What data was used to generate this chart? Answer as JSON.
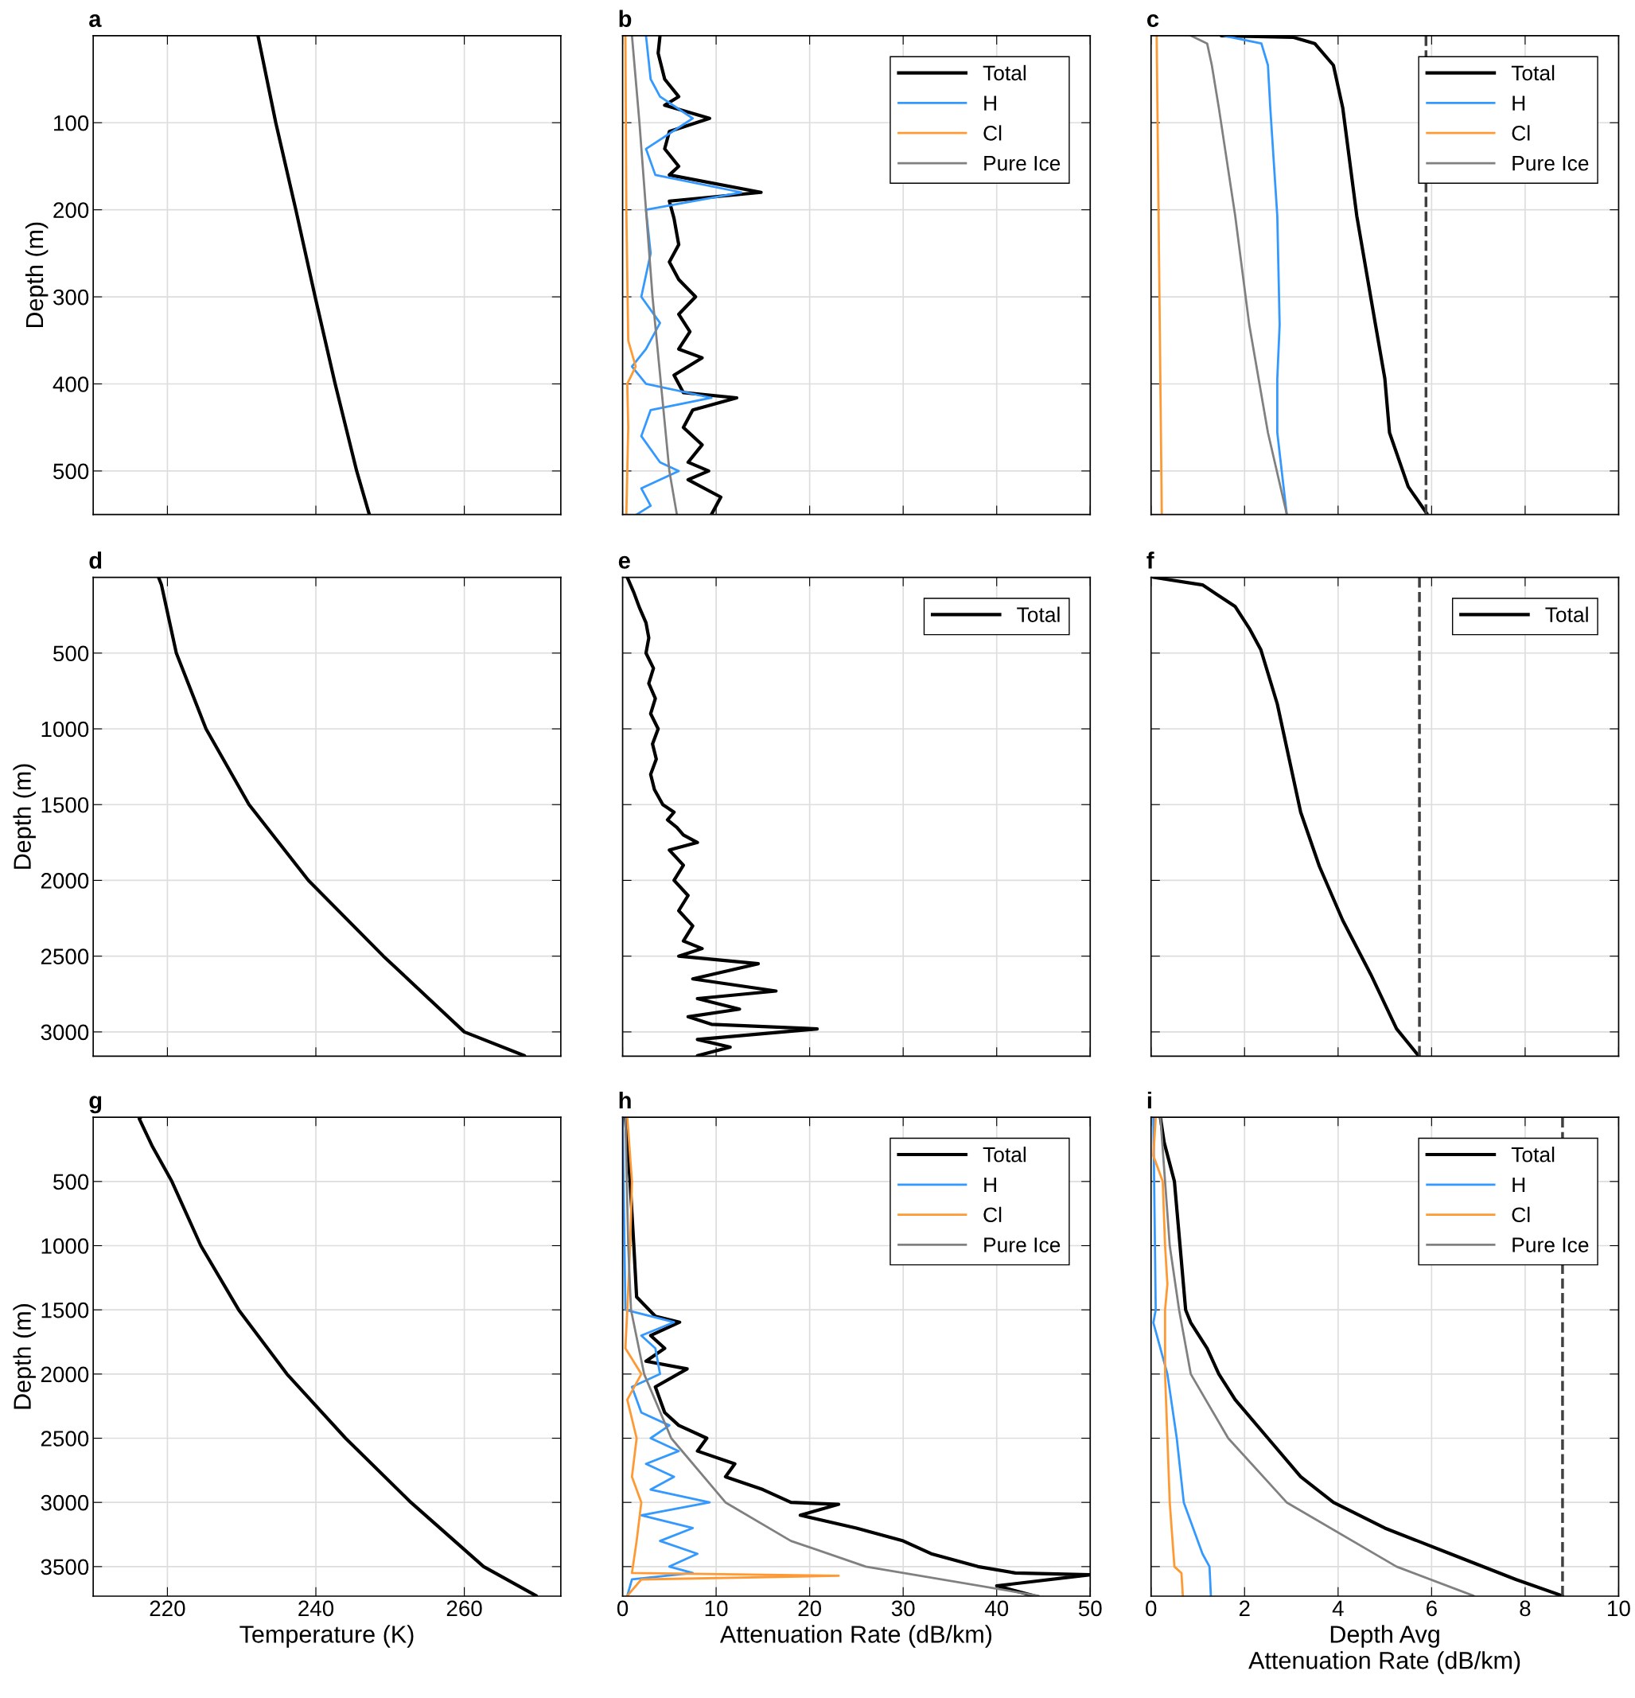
{
  "chart_data": [
    {
      "type": "line",
      "title": "a",
      "ylabel": "Depth (m)",
      "orientation": "horizontal",
      "xlim": [
        210,
        273
      ],
      "xticks": [
        220,
        240,
        260
      ],
      "ylim": [
        550,
        0
      ],
      "yticks": [
        100,
        200,
        300,
        400,
        500
      ],
      "grid": true,
      "tick_labels": "y",
      "series": [
        {
          "color": "#000000",
          "x": [
            0,
            100,
            200,
            300,
            400,
            500,
            550
          ],
          "values": [
            232.2,
            234.6,
            237.3,
            239.9,
            242.6,
            245.5,
            247.2
          ]
        }
      ]
    },
    {
      "type": "line",
      "title": "b",
      "orientation": "horizontal",
      "xlim": [
        0,
        50
      ],
      "xticks": [
        0,
        10,
        20,
        30,
        40,
        50
      ],
      "ylim": [
        550,
        0
      ],
      "yticks": [
        100,
        200,
        300,
        400,
        500
      ],
      "grid": true,
      "tick_labels": false,
      "legend": "top right",
      "series": [
        {
          "name": "Total",
          "color": "#000000",
          "x": [
            0,
            20,
            50,
            70,
            80,
            95,
            110,
            130,
            150,
            160,
            180,
            190,
            210,
            240,
            260,
            280,
            300,
            320,
            340,
            360,
            370,
            390,
            410,
            416,
            430,
            450,
            470,
            490,
            500,
            510,
            530,
            550
          ],
          "values": [
            4.0,
            3.8,
            4.5,
            6.0,
            4.5,
            9.3,
            5.0,
            4.5,
            6.0,
            5.0,
            14.8,
            5.0,
            5.5,
            6.0,
            5.0,
            6.0,
            7.8,
            6.0,
            7.2,
            6.0,
            8.5,
            5.5,
            6.5,
            12.2,
            7.5,
            6.5,
            8.5,
            7.0,
            9.2,
            7.0,
            10.5,
            9.5
          ]
        },
        {
          "name": "H",
          "color": "#3399ff",
          "x": [
            0,
            50,
            70,
            95,
            130,
            160,
            180,
            200,
            250,
            300,
            330,
            360,
            380,
            400,
            416,
            430,
            460,
            490,
            500,
            520,
            540,
            550
          ],
          "values": [
            2.5,
            3.0,
            4.0,
            7.5,
            2.5,
            3.5,
            12.7,
            2.5,
            3.0,
            2.0,
            4.0,
            2.5,
            1.0,
            2.5,
            9.5,
            3.0,
            2.0,
            4.0,
            6.0,
            2.0,
            3.0,
            1.5
          ]
        },
        {
          "name": "Cl",
          "color": "#ff9933",
          "x": [
            0,
            200,
            350,
            380,
            400,
            450,
            550
          ],
          "values": [
            0.3,
            0.4,
            0.6,
            1.4,
            0.5,
            0.6,
            0.4
          ]
        },
        {
          "name": "Pure Ice",
          "color": "#808080",
          "x": [
            0,
            100,
            200,
            300,
            400,
            500,
            550
          ],
          "values": [
            1.0,
            1.8,
            2.5,
            3.2,
            4.1,
            5.0,
            5.8
          ]
        }
      ]
    },
    {
      "type": "line",
      "title": "c",
      "orientation": "horizontal",
      "xlim": [
        0,
        10
      ],
      "xticks": [
        0,
        2,
        4,
        6,
        8,
        10
      ],
      "ylim": [
        550,
        0
      ],
      "yticks": [
        100,
        200,
        300,
        400,
        500
      ],
      "grid": true,
      "tick_labels": false,
      "legend": "top right",
      "ref_lines": [
        {
          "axis": "x",
          "value": 5.88,
          "color": "#404040",
          "line_style": "dashed"
        }
      ],
      "series": [
        {
          "name": "Total",
          "color": "#000000",
          "x": [
            0,
            2,
            9,
            34,
            83,
            207,
            332,
            394,
            456,
            518,
            549
          ],
          "values": [
            1.5,
            3.05,
            3.5,
            3.9,
            4.1,
            4.4,
            4.8,
            5.0,
            5.1,
            5.5,
            5.9
          ]
        },
        {
          "name": "H",
          "color": "#3399ff",
          "x": [
            0,
            9,
            34,
            83,
            207,
            332,
            394,
            456,
            549
          ],
          "values": [
            1.55,
            2.36,
            2.5,
            2.55,
            2.7,
            2.75,
            2.7,
            2.7,
            2.9
          ]
        },
        {
          "name": "Cl",
          "color": "#ff9933",
          "x": [
            0,
            549
          ],
          "values": [
            0.12,
            0.23
          ]
        },
        {
          "name": "Pure Ice",
          "color": "#808080",
          "x": [
            0,
            9,
            34,
            83,
            207,
            332,
            456,
            549
          ],
          "values": [
            0.85,
            1.2,
            1.3,
            1.45,
            1.8,
            2.1,
            2.5,
            2.9
          ]
        }
      ]
    },
    {
      "type": "line",
      "title": "d",
      "ylabel": "Depth (m)",
      "orientation": "horizontal",
      "xlim": [
        210,
        273
      ],
      "xticks": [
        220,
        240,
        260
      ],
      "ylim": [
        3160,
        0
      ],
      "yticks": [
        500,
        1000,
        1500,
        2000,
        2500,
        3000
      ],
      "grid": true,
      "tick_labels": "y",
      "series": [
        {
          "color": "#000000",
          "x": [
            0,
            50,
            500,
            1000,
            1500,
            2000,
            2500,
            3000,
            3157
          ],
          "values": [
            218.8,
            219.2,
            221.2,
            225.2,
            231.0,
            239.0,
            249.1,
            260.0,
            268.1
          ]
        }
      ]
    },
    {
      "type": "line",
      "title": "e",
      "orientation": "horizontal",
      "xlim": [
        0,
        50
      ],
      "xticks": [
        0,
        10,
        20,
        30,
        40,
        50
      ],
      "ylim": [
        3160,
        0
      ],
      "yticks": [
        500,
        1000,
        1500,
        2000,
        2500,
        3000
      ],
      "grid": true,
      "tick_labels": false,
      "legend": "top right",
      "series": [
        {
          "name": "Total",
          "color": "#000000",
          "x": [
            0,
            100,
            200,
            300,
            400,
            500,
            600,
            700,
            800,
            900,
            1000,
            1100,
            1200,
            1300,
            1400,
            1500,
            1550,
            1600,
            1650,
            1700,
            1750,
            1800,
            1900,
            2000,
            2100,
            2200,
            2300,
            2400,
            2450,
            2500,
            2550,
            2650,
            2730,
            2780,
            2850,
            2900,
            2950,
            2980,
            3050,
            3100,
            3157
          ],
          "values": [
            0.5,
            1.2,
            1.8,
            2.5,
            2.8,
            2.5,
            3.3,
            2.8,
            3.5,
            3.0,
            3.8,
            3.2,
            3.6,
            3.0,
            3.4,
            4.3,
            5.5,
            4.8,
            5.8,
            6.5,
            8.0,
            5.0,
            6.5,
            5.5,
            7.0,
            6.0,
            7.5,
            6.5,
            8.5,
            6.0,
            14.5,
            7.5,
            16.4,
            8.0,
            12.5,
            7.0,
            9.5,
            20.8,
            8.0,
            11.5,
            8.0
          ]
        }
      ]
    },
    {
      "type": "line",
      "title": "f",
      "orientation": "horizontal",
      "xlim": [
        0,
        10
      ],
      "xticks": [
        0,
        2,
        4,
        6,
        8,
        10
      ],
      "ylim": [
        3160,
        0
      ],
      "yticks": [
        500,
        1000,
        1500,
        2000,
        2500,
        3000
      ],
      "grid": true,
      "tick_labels": false,
      "legend": "top right",
      "ref_lines": [
        {
          "axis": "x",
          "value": 5.74,
          "color": "#404040",
          "line_style": "dashed"
        }
      ],
      "series": [
        {
          "name": "Total",
          "color": "#000000",
          "x": [
            0,
            50,
            193,
            336,
            479,
            836,
            1193,
            1550,
            1907,
            2264,
            2621,
            2979,
            3157
          ],
          "values": [
            0.05,
            1.1,
            1.8,
            2.1,
            2.35,
            2.7,
            2.95,
            3.2,
            3.6,
            4.1,
            4.7,
            5.25,
            5.72
          ]
        }
      ]
    },
    {
      "type": "line",
      "title": "g",
      "xlabel": "Temperature (K)",
      "ylabel": "Depth (m)",
      "orientation": "horizontal",
      "xlim": [
        210,
        273
      ],
      "xticks": [
        220,
        240,
        260
      ],
      "ylim": [
        3730,
        0
      ],
      "yticks": [
        500,
        1000,
        1500,
        2000,
        2500,
        3000,
        3500
      ],
      "grid": true,
      "series": [
        {
          "color": "#000000",
          "x": [
            0,
            10,
            230,
            500,
            1000,
            1500,
            2000,
            2500,
            3000,
            3500,
            3728
          ],
          "values": [
            216.4,
            216.2,
            218.0,
            220.6,
            224.5,
            229.6,
            236.1,
            244.0,
            252.8,
            262.6,
            269.7
          ]
        }
      ]
    },
    {
      "type": "line",
      "title": "h",
      "xlabel": "Attenuation Rate (dB/km)",
      "orientation": "horizontal",
      "xlim": [
        0,
        50
      ],
      "xticks": [
        0,
        10,
        20,
        30,
        40,
        50
      ],
      "ylim": [
        3730,
        0
      ],
      "yticks": [
        500,
        1000,
        1500,
        2000,
        2500,
        3000,
        3500
      ],
      "grid": true,
      "tick_labels": "x",
      "legend": "top right",
      "series": [
        {
          "name": "Total",
          "color": "#000000",
          "x": [
            0,
            500,
            1000,
            1400,
            1550,
            1596,
            1700,
            1800,
            1900,
            1960,
            2100,
            2300,
            2400,
            2500,
            2600,
            2700,
            2800,
            2900,
            3000,
            3015,
            3100,
            3200,
            3300,
            3400,
            3500,
            3550,
            3564,
            3650,
            3728
          ],
          "values": [
            0.3,
            0.8,
            1.2,
            1.5,
            3.5,
            6.1,
            3.0,
            4.5,
            2.5,
            6.9,
            3.5,
            4.5,
            6.0,
            9.0,
            8.0,
            12.0,
            11.0,
            15.0,
            18.0,
            23.1,
            19.0,
            25.0,
            30.0,
            33.0,
            38.0,
            42.0,
            50.0,
            40.0,
            44.0
          ]
        },
        {
          "name": "H",
          "color": "#3399ff",
          "x": [
            0,
            1500,
            1596,
            1700,
            1800,
            2000,
            2100,
            2300,
            2400,
            2500,
            2600,
            2700,
            2800,
            2900,
            3000,
            3100,
            3200,
            3300,
            3400,
            3500,
            3550,
            3600,
            3728
          ],
          "values": [
            0.0,
            0.3,
            5.5,
            2.0,
            3.5,
            4.0,
            1.0,
            2.0,
            5.0,
            3.0,
            6.0,
            2.5,
            5.5,
            3.0,
            9.3,
            2.0,
            7.5,
            4.0,
            8.0,
            5.0,
            7.5,
            1.0,
            0.5
          ]
        },
        {
          "name": "Cl",
          "color": "#ff9933",
          "x": [
            0,
            500,
            1000,
            1500,
            1800,
            2000,
            2200,
            2500,
            2800,
            3000,
            3300,
            3550,
            3572,
            3600,
            3728
          ],
          "values": [
            0.5,
            1.0,
            0.8,
            0.5,
            0.3,
            2.0,
            0.5,
            1.5,
            1.0,
            2.0,
            1.5,
            1.0,
            23.1,
            2.0,
            0.5
          ]
        },
        {
          "name": "Pure Ice",
          "color": "#808080",
          "x": [
            0,
            1000,
            1500,
            2000,
            2500,
            3000,
            3300,
            3500,
            3728
          ],
          "values": [
            0.3,
            0.6,
            0.9,
            2.3,
            5.2,
            11.0,
            18.0,
            26.0,
            44.5
          ]
        }
      ]
    },
    {
      "type": "line",
      "title": "i",
      "xlabel": "Depth Avg\nAttenuation Rate (dB/km)",
      "orientation": "horizontal",
      "xlim": [
        0,
        10
      ],
      "xticks": [
        0,
        2,
        4,
        6,
        8,
        10
      ],
      "ylim": [
        3730,
        0
      ],
      "yticks": [
        500,
        1000,
        1500,
        2000,
        2500,
        3000,
        3500
      ],
      "grid": true,
      "tick_labels": "x",
      "legend": "top right",
      "ref_lines": [
        {
          "axis": "x",
          "value": 8.8,
          "color": "#404040",
          "line_style": "dashed"
        }
      ],
      "series": [
        {
          "name": "Total",
          "color": "#000000",
          "x": [
            0,
            195,
            500,
            1000,
            1500,
            1600,
            1800,
            2000,
            2200,
            2500,
            2800,
            3000,
            3200,
            3400,
            3600,
            3728
          ],
          "values": [
            0.2,
            0.28,
            0.5,
            0.62,
            0.74,
            0.85,
            1.2,
            1.45,
            1.8,
            2.5,
            3.2,
            3.9,
            5.0,
            6.4,
            7.8,
            8.8
          ]
        },
        {
          "name": "H",
          "color": "#3399ff",
          "x": [
            0,
            1500,
            1600,
            2000,
            2500,
            3000,
            3200,
            3400,
            3500,
            3728
          ],
          "values": [
            0.05,
            0.1,
            0.05,
            0.35,
            0.55,
            0.7,
            0.9,
            1.1,
            1.25,
            1.28
          ]
        },
        {
          "name": "Cl",
          "color": "#ff9933",
          "x": [
            0,
            300,
            500,
            1000,
            1300,
            1500,
            2000,
            2500,
            3000,
            3500,
            3550,
            3728
          ],
          "values": [
            0.1,
            0.05,
            0.25,
            0.3,
            0.35,
            0.3,
            0.3,
            0.35,
            0.4,
            0.5,
            0.65,
            0.68
          ]
        },
        {
          "name": "Pure Ice",
          "color": "#808080",
          "x": [
            0,
            500,
            1000,
            1500,
            2000,
            2500,
            3000,
            3500,
            3728
          ],
          "values": [
            0.2,
            0.3,
            0.4,
            0.6,
            0.85,
            1.65,
            2.9,
            5.25,
            6.9
          ]
        }
      ]
    }
  ]
}
